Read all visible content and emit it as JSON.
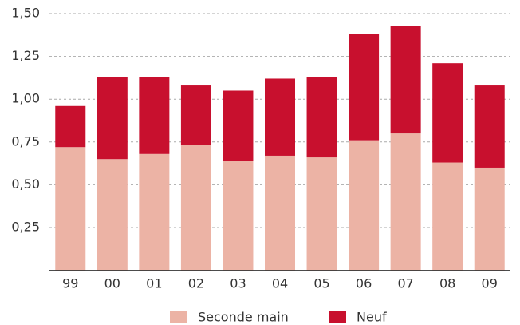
{
  "chart_data": {
    "type": "bar",
    "stacked": true,
    "categories": [
      "99",
      "00",
      "01",
      "02",
      "03",
      "04",
      "05",
      "06",
      "07",
      "08",
      "09"
    ],
    "series": [
      {
        "name": "Seconde main",
        "color": "#ecb3a5",
        "values": [
          0.72,
          0.65,
          0.68,
          0.735,
          0.64,
          0.67,
          0.66,
          0.76,
          0.8,
          0.63,
          0.6
        ]
      },
      {
        "name": "Neuf",
        "color": "#c8102e",
        "values": [
          0.24,
          0.48,
          0.45,
          0.345,
          0.41,
          0.45,
          0.47,
          0.62,
          0.63,
          0.58,
          0.48
        ]
      }
    ],
    "ylim": [
      0,
      1.5
    ],
    "yticks": [
      {
        "value": 0.25,
        "label": "0,25"
      },
      {
        "value": 0.5,
        "label": "0,50"
      },
      {
        "value": 0.75,
        "label": "0,75"
      },
      {
        "value": 1,
        "label": "1,00"
      },
      {
        "value": 1.25,
        "label": "1,25"
      },
      {
        "value": 1.5,
        "label": "1,50"
      }
    ],
    "grid": true,
    "legend": "bottom"
  }
}
